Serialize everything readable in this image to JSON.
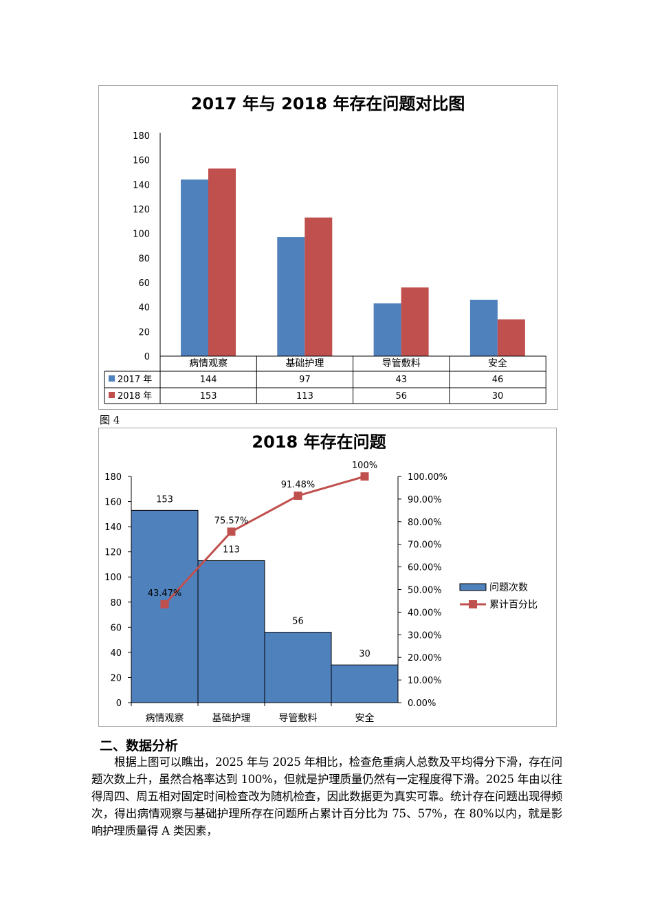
{
  "chart_data": [
    {
      "type": "bar",
      "title": "2017 年与 2018 年存在问题对比图",
      "categories": [
        "病情观察",
        "基础护理",
        "导管敷料",
        "安全"
      ],
      "series": [
        {
          "name": "2017 年",
          "color": "#4f81bd",
          "values": [
            144,
            97,
            43,
            46
          ]
        },
        {
          "name": "2018 年",
          "color": "#c0504d",
          "values": [
            153,
            113,
            56,
            30
          ]
        }
      ],
      "ylim": [
        0,
        180
      ],
      "yticks": [
        "0",
        "20",
        "40",
        "60",
        "80",
        "100",
        "120",
        "140",
        "160",
        "180"
      ],
      "legend": "data-table"
    },
    {
      "type": "bar+line",
      "title": "2018 年存在问题",
      "categories": [
        "病情观察",
        "基础护理",
        "导管敷料",
        "安全"
      ],
      "bar_series": {
        "name": "问题次数",
        "color": "#4f81bd",
        "values": [
          153,
          113,
          56,
          30
        ],
        "labels": [
          "153",
          "113",
          "56",
          "30"
        ]
      },
      "line_series": {
        "name": "累计百分比",
        "color": "#c0504d",
        "values": [
          43.47,
          75.57,
          91.48,
          100
        ],
        "labels": [
          "43.47%",
          "75.57%",
          "91.48%",
          "100%"
        ]
      },
      "ylim": [
        0,
        180
      ],
      "yticks": [
        "0",
        "20",
        "40",
        "60",
        "80",
        "100",
        "120",
        "140",
        "160",
        "180"
      ],
      "y2lim": [
        0,
        100
      ],
      "y2ticks": [
        "0.00%",
        "10.00%",
        "20.00%",
        "30.00%",
        "40.00%",
        "50.00%",
        "60.00%",
        "70.00%",
        "80.00%",
        "90.00%",
        "100.00%"
      ],
      "legend": "right"
    }
  ],
  "figure_label": "图 4",
  "section_heading": "二、数据分析",
  "paragraph": "根据上图可以瞧出，2025 年与 2025 年相比，检查危重病人总数及平均得分下滑，存在问题次数上升，虽然合格率达到 100%，但就是护理质量仍然有一定程度得下滑。2025 年由以往得周四、周五相对固定时间检查改为随机检查，因此数据更为真实可靠。统计存在问题出现得频次，得出病情观察与基础护理所存在问题所占累计百分比为 75、57%，在 80%以内，就是影响护理质量得 A 类因素，"
}
